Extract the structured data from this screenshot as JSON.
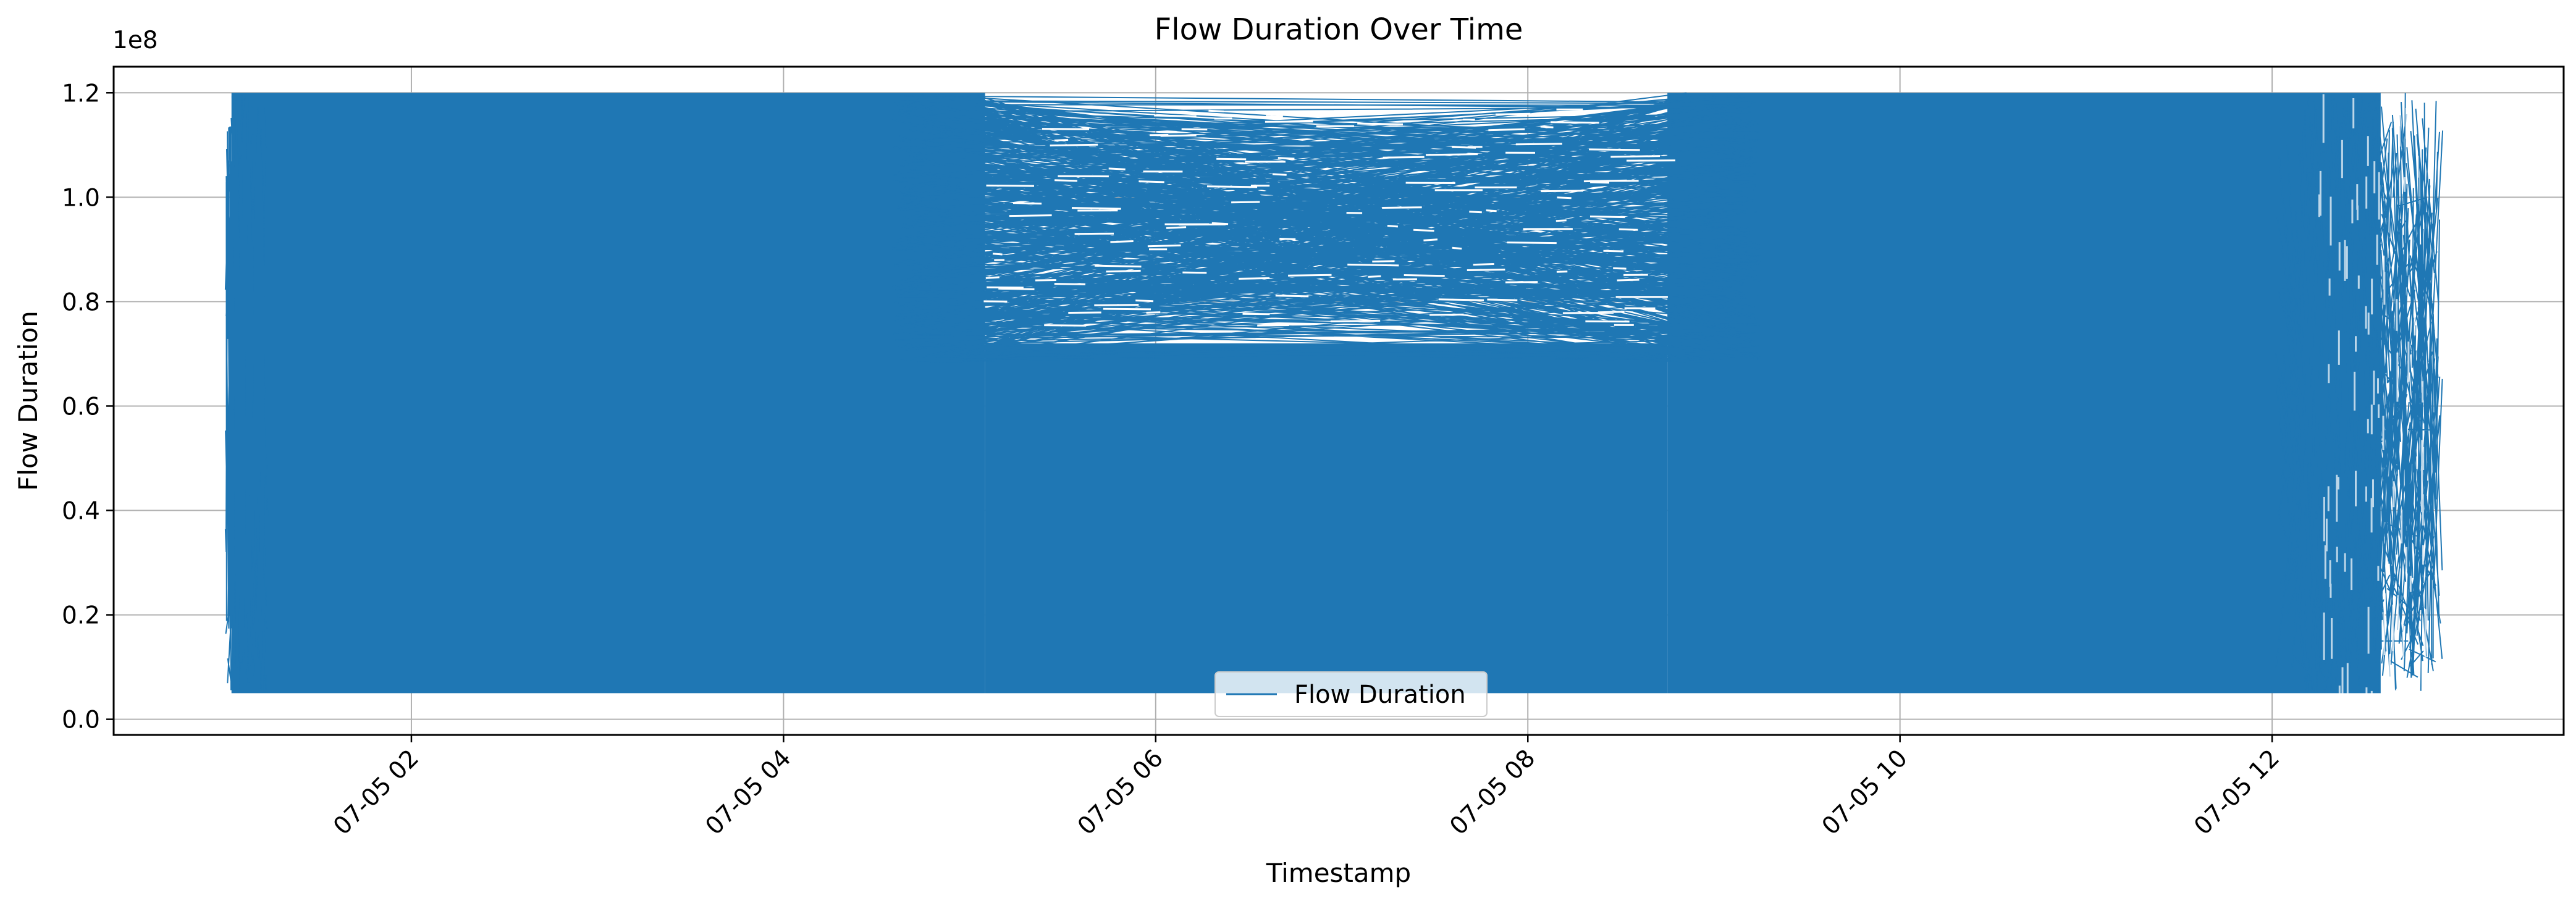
{
  "chart_data": {
    "type": "line",
    "title": "Flow Duration Over Time",
    "xlabel": "Timestamp",
    "ylabel": "Flow Duration",
    "y_offset_label": "1e8",
    "x_ticks": [
      "07-05 02",
      "07-05 04",
      "07-05 06",
      "07-05 08",
      "07-05 10",
      "07-05 12"
    ],
    "y_ticks": [
      "0.0",
      "0.2",
      "0.4",
      "0.6",
      "0.8",
      "1.0",
      "1.2"
    ],
    "xlim": [
      "2017-07-05 00:24",
      "2017-07-05 13:34"
    ],
    "ylim": [
      -3000000,
      125000000
    ],
    "x_start": "2017-07-05 01:00",
    "x_end": "2017-07-05 13:00",
    "y_min_observed": 5000000,
    "y_max_observed": 120000000,
    "grid": true,
    "legend_position": "bottom-center",
    "series": [
      {
        "name": "Flow Duration",
        "color": "#1f77b4",
        "description_points": [
          {
            "x": "2017-07-05 01:00",
            "y": 6000000
          },
          {
            "x": "2017-07-05 01:00",
            "y": 119000000
          },
          {
            "x": "2017-07-05 05:05",
            "y": 120000000
          },
          {
            "x": "2017-07-05 05:05",
            "y": 6000000
          },
          {
            "x": "2017-07-05 08:45",
            "y": 6500000
          },
          {
            "x": "2017-07-05 08:45",
            "y": 120000000
          },
          {
            "x": "2017-07-05 12:55",
            "y": 120000000
          },
          {
            "x": "2017-07-05 12:55",
            "y": 6000000
          }
        ]
      }
    ]
  }
}
